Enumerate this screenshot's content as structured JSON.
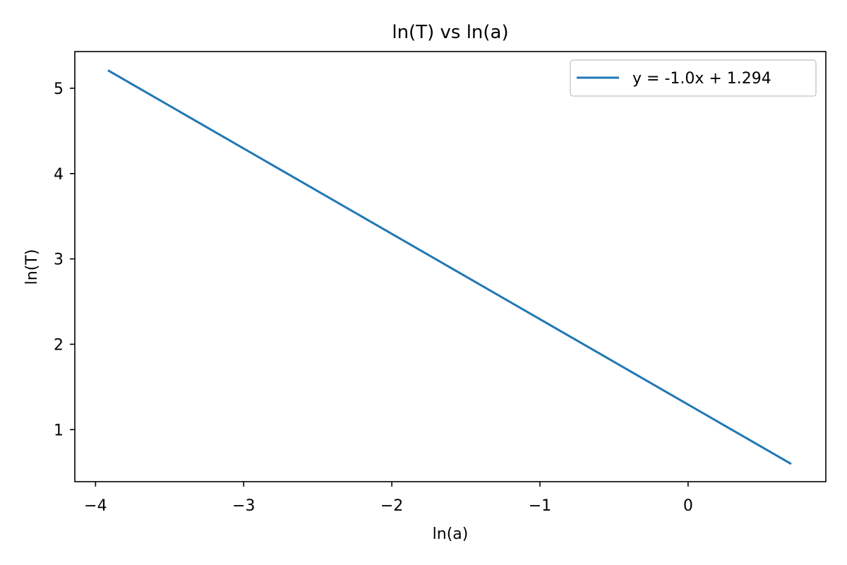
{
  "chart_data": {
    "type": "line",
    "title": "ln(T) vs ln(a)",
    "xlabel": "ln(a)",
    "ylabel": "ln(T)",
    "xlim": [
      -4.14,
      0.93
    ],
    "ylim": [
      0.39,
      5.43
    ],
    "xticks": [
      -4,
      -3,
      -2,
      -1,
      0
    ],
    "yticks": [
      1,
      2,
      3,
      4,
      5
    ],
    "x_tick_labels": [
      "−4",
      "−3",
      "−2",
      "−1",
      "0"
    ],
    "y_tick_labels": [
      "1",
      "2",
      "3",
      "4",
      "5"
    ],
    "grid": false,
    "legend_position": "top-right",
    "series": [
      {
        "name": "y = -1.0x + 1.294",
        "color": "#1f77b4",
        "x": [
          -3.91,
          0.69
        ],
        "y": [
          5.204,
          0.604
        ]
      }
    ]
  }
}
